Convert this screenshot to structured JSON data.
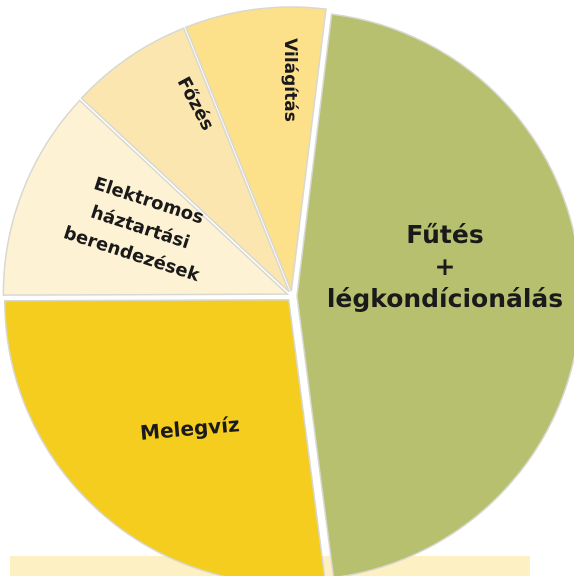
{
  "chart_data": {
    "type": "pie",
    "categories": [
      [
        "Fűtés",
        "+",
        "légkondícionálás"
      ],
      [
        "Melegvíz"
      ],
      [
        "Elektromos",
        "háztartási",
        "berendezések"
      ],
      [
        "Főzés"
      ],
      [
        "Világítás"
      ]
    ],
    "values": [
      46,
      27,
      12,
      7,
      8
    ],
    "colors": [
      "#b6c06e",
      "#f4cd1e",
      "#fdf2d4",
      "#fbe6b0",
      "#fde08a"
    ]
  }
}
